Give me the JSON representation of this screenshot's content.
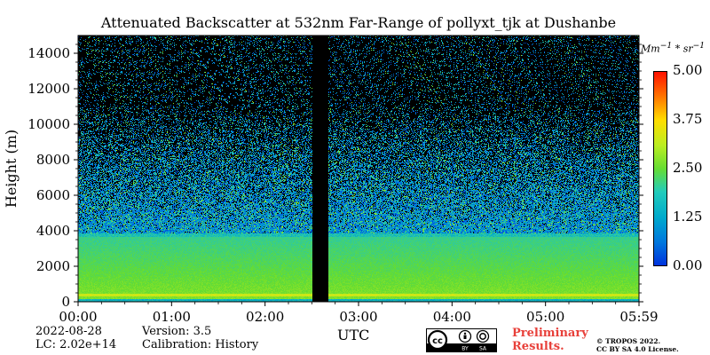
{
  "chart_data": {
    "type": "heatmap",
    "title": "Attenuated Backscatter at 532nm Far-Range of pollyxt_tjk at Dushanbe",
    "xlabel": "UTC",
    "ylabel": "Height (m)",
    "xlim": [
      "00:00",
      "05:59"
    ],
    "ylim": [
      0,
      15000
    ],
    "x_ticks": [
      "00:00",
      "01:00",
      "02:00",
      "03:00",
      "04:00",
      "05:00",
      "05:59"
    ],
    "y_ticks": [
      "0",
      "2000",
      "4000",
      "6000",
      "8000",
      "10000",
      "12000",
      "14000"
    ],
    "y_tick_values": [
      0,
      2000,
      4000,
      6000,
      8000,
      10000,
      12000,
      14000
    ],
    "colorbar": {
      "unit": "Mm^-1 * sr^-1",
      "ticks": [
        "0.00",
        "1.25",
        "2.50",
        "3.75",
        "5.00"
      ],
      "range": [
        0,
        5
      ],
      "colormap": "jet"
    },
    "layers": [
      {
        "description": "boundary layer",
        "height_range_m": [
          0,
          3900
        ],
        "value_range": [
          1.6,
          2.7
        ]
      },
      {
        "description": "surface layer peak",
        "height_range_m": [
          300,
          500
        ],
        "value_range": [
          2.6,
          3.0
        ]
      },
      {
        "description": "free troposphere noisy signal",
        "height_range_m": [
          3900,
          15000
        ],
        "value_range": [
          0,
          2.5
        ]
      }
    ],
    "data_gap_utc": [
      "02:30",
      "02:40"
    ]
  },
  "info": {
    "date": "2022-08-28",
    "lc": "LC: 2.02e+14",
    "version": "Version: 3.5",
    "calibration": "Calibration: History",
    "preliminary_line1": "Preliminary",
    "preliminary_line2": "Results.",
    "copyright_line1": "© TROPOS 2022.",
    "copyright_line2": "CC BY SA 4.0 License.",
    "cc_icons": [
      "cc-icon",
      "by-icon",
      "sa-icon"
    ],
    "cc_text": [
      "BY",
      "SA"
    ]
  }
}
